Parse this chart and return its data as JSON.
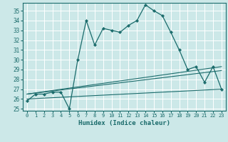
{
  "xlabel": "Humidex (Indice chaleur)",
  "xlim": [
    -0.5,
    23.5
  ],
  "ylim": [
    24.8,
    35.8
  ],
  "yticks": [
    25,
    26,
    27,
    28,
    29,
    30,
    31,
    32,
    33,
    34,
    35
  ],
  "xticks": [
    0,
    1,
    2,
    3,
    4,
    5,
    6,
    7,
    8,
    9,
    10,
    11,
    12,
    13,
    14,
    15,
    16,
    17,
    18,
    19,
    20,
    21,
    22,
    23
  ],
  "bg_color": "#cce8e8",
  "line_color": "#1a6b6b",
  "grid_color": "#ffffff",
  "series1_x": [
    0,
    1,
    2,
    3,
    4,
    5,
    6,
    7,
    8,
    9,
    10,
    11,
    12,
    13,
    14,
    15,
    16,
    17,
    18,
    19,
    20,
    21,
    22,
    23
  ],
  "series1_y": [
    25.8,
    26.5,
    26.5,
    26.7,
    26.7,
    25.0,
    30.0,
    34.0,
    31.5,
    33.2,
    33.0,
    32.8,
    33.5,
    34.0,
    35.6,
    35.0,
    34.5,
    32.8,
    31.0,
    29.0,
    29.3,
    27.7,
    29.3,
    27.0
  ],
  "series2_x": [
    0,
    23
  ],
  "series2_y": [
    26.0,
    27.0
  ],
  "series3_x": [
    0,
    23
  ],
  "series3_y": [
    26.5,
    28.9
  ],
  "series4_x": [
    0,
    23
  ],
  "series4_y": [
    26.5,
    29.3
  ]
}
